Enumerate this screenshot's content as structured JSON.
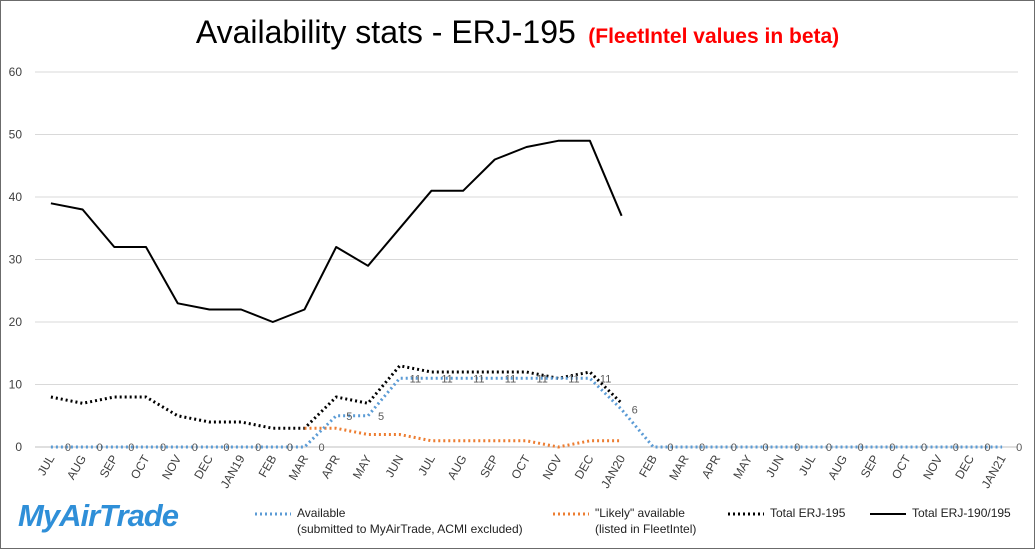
{
  "title": "Availability stats - ERJ-195",
  "subtitle": "(FleetIntel values in beta)",
  "logo_text": "MyAirTrade",
  "legend": [
    {
      "line1": "Available",
      "line2": "(submitted to MyAirTrade, ACMI excluded)",
      "color": "#5b9bd5",
      "style": "dotted"
    },
    {
      "line1": "\"Likely\" available",
      "line2": "(listed in FleetIntel)",
      "color": "#ed7d31",
      "style": "dotted"
    },
    {
      "line1": "Total ERJ-195",
      "line2": "",
      "color": "#000000",
      "style": "dotted"
    },
    {
      "line1": "Total ERJ-190/195",
      "line2": "",
      "color": "#000000",
      "style": "solid"
    }
  ],
  "chart_data": {
    "type": "line",
    "categories": [
      "JUL",
      "AUG",
      "SEP",
      "OCT",
      "NOV",
      "DEC",
      "JAN19",
      "FEB",
      "MAR",
      "APR",
      "MAY",
      "JUN",
      "JUL",
      "AUG",
      "SEP",
      "OCT",
      "NOV",
      "DEC",
      "JAN20",
      "FEB",
      "MAR",
      "APR",
      "MAY",
      "JUN",
      "JUL",
      "AUG",
      "SEP",
      "OCT",
      "NOV",
      "DEC",
      "JAN21"
    ],
    "ylim": [
      0,
      60
    ],
    "yticks": [
      0,
      10,
      20,
      30,
      40,
      50,
      60
    ],
    "grid": true,
    "series": [
      {
        "name": "Total ERJ-190/195",
        "color": "#000000",
        "style": "solid",
        "values": [
          39,
          38,
          32,
          32,
          23,
          22,
          22,
          20,
          22,
          32,
          29,
          35,
          41,
          41,
          46,
          48,
          49,
          49,
          37,
          null,
          null,
          null,
          null,
          null,
          null,
          null,
          null,
          null,
          null,
          null,
          null
        ],
        "labels": false
      },
      {
        "name": "Total ERJ-195",
        "color": "#000000",
        "style": "dotted",
        "values": [
          8,
          7,
          8,
          8,
          5,
          4,
          4,
          3,
          3,
          8,
          7,
          13,
          12,
          12,
          12,
          12,
          11,
          12,
          7,
          null,
          null,
          null,
          null,
          null,
          null,
          null,
          null,
          null,
          null,
          null,
          null
        ],
        "labels": false
      },
      {
        "name": "\"Likely\" available",
        "color": "#ed7d31",
        "style": "dotted",
        "values": [
          null,
          null,
          null,
          null,
          null,
          null,
          null,
          null,
          3,
          3,
          2,
          2,
          1,
          1,
          1,
          1,
          0,
          1,
          1,
          null,
          null,
          null,
          null,
          null,
          null,
          null,
          null,
          null,
          null,
          null,
          null
        ],
        "labels": false
      },
      {
        "name": "Available",
        "color": "#5b9bd5",
        "style": "dotted",
        "values": [
          0,
          0,
          0,
          0,
          0,
          0,
          0,
          0,
          0,
          5,
          5,
          11,
          11,
          11,
          11,
          11,
          11,
          11,
          6,
          0,
          0,
          0,
          0,
          0,
          0,
          0,
          0,
          0,
          0,
          0,
          0
        ],
        "labels": true
      }
    ]
  }
}
